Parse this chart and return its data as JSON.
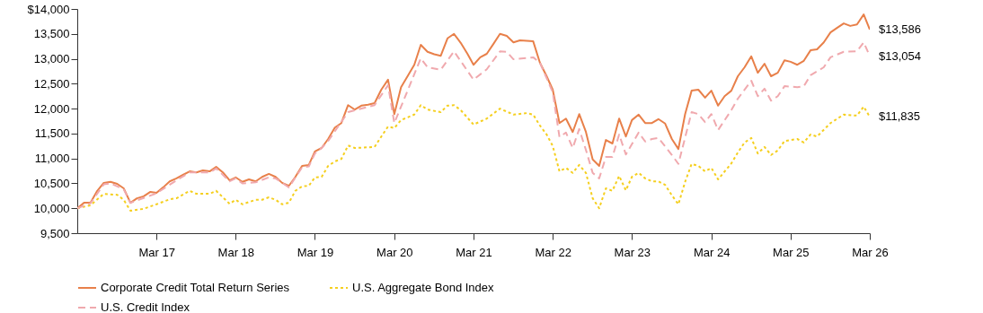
{
  "chart_data": {
    "type": "line",
    "x": [
      "2016-03",
      "2016-04",
      "2016-05",
      "2016-06",
      "2016-07",
      "2016-08",
      "2016-09",
      "2016-10",
      "2016-11",
      "2016-12",
      "2017-01",
      "2017-02",
      "2017-03",
      "2017-04",
      "2017-05",
      "2017-06",
      "2017-07",
      "2017-08",
      "2017-09",
      "2017-10",
      "2017-11",
      "2017-12",
      "2018-01",
      "2018-02",
      "2018-03",
      "2018-04",
      "2018-05",
      "2018-06",
      "2018-07",
      "2018-08",
      "2018-09",
      "2018-10",
      "2018-11",
      "2018-12",
      "2019-01",
      "2019-02",
      "2019-03",
      "2019-04",
      "2019-05",
      "2019-06",
      "2019-07",
      "2019-08",
      "2019-09",
      "2019-10",
      "2019-11",
      "2019-12",
      "2020-01",
      "2020-02",
      "2020-03",
      "2020-04",
      "2020-05",
      "2020-06",
      "2020-07",
      "2020-08",
      "2020-09",
      "2020-10",
      "2020-11",
      "2020-12",
      "2021-01",
      "2021-02",
      "2021-03",
      "2021-04",
      "2021-05",
      "2021-06",
      "2021-07",
      "2021-08",
      "2021-09",
      "2021-10",
      "2021-11",
      "2021-12",
      "2022-01",
      "2022-02",
      "2022-03",
      "2022-04",
      "2022-05",
      "2022-06",
      "2022-07",
      "2022-08",
      "2022-09",
      "2022-10",
      "2022-11",
      "2022-12",
      "2023-01",
      "2023-02",
      "2023-03",
      "2023-04",
      "2023-05",
      "2023-06",
      "2023-07",
      "2023-08",
      "2023-09",
      "2023-10",
      "2023-11",
      "2023-12",
      "2024-01",
      "2024-02",
      "2024-03",
      "2024-04",
      "2024-05",
      "2024-06",
      "2024-07",
      "2024-08",
      "2024-09",
      "2024-10",
      "2024-11",
      "2024-12",
      "2025-01",
      "2025-02",
      "2025-03",
      "2025-04",
      "2025-05",
      "2025-06",
      "2025-07",
      "2025-08",
      "2025-09",
      "2025-10",
      "2025-11",
      "2025-12",
      "2026-01",
      "2026-02",
      "2026-03"
    ],
    "series": [
      {
        "name": "Corporate Credit Total Return Series",
        "color": "#e8804a",
        "line_style": "solid",
        "values": [
          10000,
          10110,
          10110,
          10350,
          10510,
          10530,
          10490,
          10400,
          10110,
          10200,
          10240,
          10330,
          10310,
          10420,
          10540,
          10600,
          10670,
          10740,
          10720,
          10760,
          10740,
          10830,
          10720,
          10560,
          10620,
          10530,
          10580,
          10540,
          10630,
          10690,
          10630,
          10510,
          10450,
          10630,
          10850,
          10870,
          11140,
          11210,
          11390,
          11620,
          11710,
          12070,
          11980,
          12060,
          12080,
          12110,
          12380,
          12580,
          11890,
          12430,
          12650,
          12880,
          13280,
          13140,
          13090,
          13060,
          13410,
          13500,
          13320,
          13100,
          12880,
          13030,
          13100,
          13300,
          13500,
          13460,
          13330,
          13370,
          13360,
          13350,
          12920,
          12650,
          12380,
          11710,
          11800,
          11530,
          11890,
          11530,
          10980,
          10850,
          11370,
          11300,
          11800,
          11440,
          11770,
          11880,
          11710,
          11710,
          11790,
          11700,
          11390,
          11190,
          11890,
          12360,
          12380,
          12220,
          12360,
          12060,
          12250,
          12360,
          12650,
          12830,
          13050,
          12720,
          12900,
          12650,
          12720,
          12970,
          12940,
          12880,
          12960,
          13170,
          13190,
          13330,
          13530,
          13620,
          13710,
          13660,
          13690,
          13890,
          13586
        ]
      },
      {
        "name": "U.S. Aggregate Bond Index",
        "color": "#f5cf1f",
        "line_style": "dotted",
        "x": [
          "2016-03",
          "2016-05",
          "2016-07",
          "2016-09",
          "2016-10",
          "2016-11",
          "2017-01",
          "2017-03",
          "2017-05",
          "2017-06",
          "2017-08",
          "2017-09",
          "2017-11",
          "2017-12",
          "2018-02",
          "2018-03",
          "2018-04",
          "2018-06",
          "2018-07",
          "2018-08",
          "2018-09",
          "2018-10",
          "2018-11",
          "2018-12",
          "2019-01",
          "2019-02",
          "2019-03",
          "2019-04",
          "2019-05",
          "2019-06",
          "2019-07",
          "2019-08",
          "2019-09",
          "2019-12",
          "2020-01",
          "2020-02",
          "2020-03",
          "2020-04",
          "2020-06",
          "2020-07",
          "2020-08",
          "2020-10",
          "2020-11",
          "2020-12",
          "2021-01",
          "2021-03",
          "2021-05",
          "2021-07",
          "2021-09",
          "2021-11",
          "2021-12",
          "2022-01",
          "2022-02",
          "2022-03",
          "2022-04",
          "2022-05",
          "2022-06",
          "2022-07",
          "2022-08",
          "2022-09",
          "2022-10",
          "2022-11",
          "2022-12",
          "2023-01",
          "2023-02",
          "2023-03",
          "2023-04",
          "2023-05",
          "2023-06",
          "2023-07",
          "2023-08",
          "2023-09",
          "2023-10",
          "2023-11",
          "2023-12",
          "2024-01",
          "2024-02",
          "2024-03",
          "2024-04",
          "2024-06",
          "2024-07",
          "2024-08",
          "2024-09",
          "2024-10",
          "2024-11",
          "2024-12",
          "2025-01",
          "2025-02",
          "2025-04",
          "2025-05",
          "2025-06",
          "2025-07",
          "2025-09",
          "2025-11",
          "2026-01",
          "2026-02",
          "2026-03"
        ],
        "values": [
          10000,
          10060,
          10290,
          10270,
          10170,
          9950,
          9990,
          10080,
          10180,
          10200,
          10350,
          10290,
          10290,
          10350,
          10090,
          10170,
          10080,
          10170,
          10170,
          10220,
          10170,
          10080,
          10110,
          10350,
          10440,
          10450,
          10620,
          10630,
          10850,
          10940,
          10990,
          11260,
          11210,
          11230,
          11440,
          11640,
          11610,
          11770,
          11880,
          12070,
          11980,
          11930,
          12060,
          12070,
          11970,
          11680,
          11800,
          12000,
          11880,
          11910,
          11880,
          11660,
          11480,
          11250,
          10740,
          10810,
          10710,
          10870,
          10710,
          10200,
          10000,
          10400,
          10350,
          10650,
          10360,
          10630,
          10710,
          10600,
          10540,
          10540,
          10470,
          10260,
          10080,
          10530,
          10890,
          10850,
          10740,
          10810,
          10580,
          10900,
          11120,
          11320,
          11410,
          11100,
          11230,
          11070,
          11160,
          11350,
          11390,
          11320,
          11480,
          11440,
          11710,
          11880,
          11860,
          12040,
          11835
        ]
      },
      {
        "name": "U.S. Credit Index",
        "color": "#f0a9ae",
        "line_style": "dashed",
        "x": [
          "2016-03",
          "2016-05",
          "2016-07",
          "2016-08",
          "2016-10",
          "2016-11",
          "2017-03",
          "2017-06",
          "2017-08",
          "2017-11",
          "2017-12",
          "2018-02",
          "2018-03",
          "2018-04",
          "2018-06",
          "2018-08",
          "2018-09",
          "2018-11",
          "2019-01",
          "2019-02",
          "2019-03",
          "2019-04",
          "2019-05",
          "2019-08",
          "2019-12",
          "2020-02",
          "2020-03",
          "2020-07",
          "2020-08",
          "2020-10",
          "2020-12",
          "2021-03",
          "2021-05",
          "2021-07",
          "2021-08",
          "2021-09",
          "2021-12",
          "2022-01",
          "2022-03",
          "2022-04",
          "2022-05",
          "2022-06",
          "2022-07",
          "2022-08",
          "2022-09",
          "2022-10",
          "2022-11",
          "2022-12",
          "2023-01",
          "2023-02",
          "2023-04",
          "2023-05",
          "2023-06",
          "2023-07",
          "2023-09",
          "2023-10",
          "2023-12",
          "2024-01",
          "2024-02",
          "2024-03",
          "2024-04",
          "2024-06",
          "2024-07",
          "2024-09",
          "2024-10",
          "2024-11",
          "2024-12",
          "2025-01",
          "2025-02",
          "2025-04",
          "2025-05",
          "2025-06",
          "2025-08",
          "2025-09",
          "2025-11",
          "2026-01",
          "2026-02",
          "2026-03"
        ],
        "values": [
          10000,
          10100,
          10480,
          10500,
          10380,
          10110,
          10300,
          10560,
          10720,
          10720,
          10800,
          10540,
          10600,
          10500,
          10520,
          10620,
          10600,
          10420,
          10820,
          10840,
          11100,
          11210,
          11350,
          11930,
          12070,
          12470,
          11710,
          13010,
          12830,
          12780,
          13150,
          12580,
          12790,
          13150,
          13140,
          12990,
          13030,
          12920,
          12330,
          11430,
          11520,
          11210,
          11590,
          11170,
          10710,
          10600,
          11030,
          11030,
          11480,
          11080,
          11520,
          11340,
          11390,
          11410,
          11070,
          10890,
          11930,
          11890,
          11730,
          11890,
          11570,
          11970,
          12200,
          12560,
          12250,
          12400,
          12160,
          12250,
          12450,
          12430,
          12450,
          12670,
          12830,
          13030,
          13140,
          13150,
          13330,
          13054
        ]
      }
    ],
    "xlim": [
      "2016-03",
      "2026-03"
    ],
    "xticks": [
      {
        "value": "2017-03",
        "label": "Mar 17"
      },
      {
        "value": "2018-03",
        "label": "Mar 18"
      },
      {
        "value": "2019-03",
        "label": "Mar 19"
      },
      {
        "value": "2020-03",
        "label": "Mar 20"
      },
      {
        "value": "2021-03",
        "label": "Mar 21"
      },
      {
        "value": "2022-03",
        "label": "Mar 22"
      },
      {
        "value": "2023-03",
        "label": "Mar 23"
      },
      {
        "value": "2024-03",
        "label": "Mar 24"
      },
      {
        "value": "2025-03",
        "label": "Mar 25"
      },
      {
        "value": "2026-03",
        "label": "Mar 26"
      }
    ],
    "ylim": [
      9500,
      14000
    ],
    "yticks": [
      {
        "value": 9500,
        "label": "9,500"
      },
      {
        "value": 10000,
        "label": "10,000"
      },
      {
        "value": 10500,
        "label": "10,500"
      },
      {
        "value": 11000,
        "label": "11,000"
      },
      {
        "value": 11500,
        "label": "11,500"
      },
      {
        "value": 12000,
        "label": "12,000"
      },
      {
        "value": 12500,
        "label": "12,500"
      },
      {
        "value": 13000,
        "label": "13,000"
      },
      {
        "value": 13500,
        "label": "13,500"
      },
      {
        "value": 14000,
        "label": "$14,000"
      }
    ],
    "annotations": [
      {
        "text": "$13,586",
        "x": "2026-03",
        "y": 13586
      },
      {
        "text": "$13,054",
        "x": "2026-03",
        "y": 13054
      },
      {
        "text": "$11,835",
        "x": "2026-03",
        "y": 11835
      }
    ],
    "legend": "bottom",
    "grid": false
  }
}
